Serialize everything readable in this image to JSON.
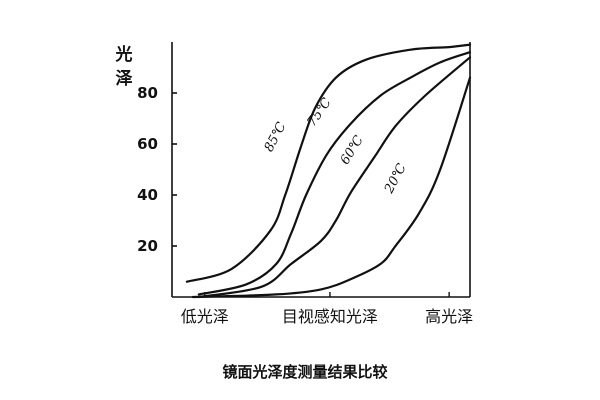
{
  "caption": "镜面光泽度测量结果比较",
  "chart_data": {
    "type": "line",
    "title": "镜面光泽度测量结果比较",
    "ylabel": "光泽",
    "xlabel": "",
    "ylim": [
      0,
      100
    ],
    "yticks": [
      20,
      40,
      60,
      80
    ],
    "x_categories": [
      "低光泽",
      "目视感知光泽",
      "高光泽"
    ],
    "xlim": [
      0,
      10
    ],
    "x_category_positions": [
      1.1,
      5.3,
      9.3
    ],
    "grid": false,
    "series": [
      {
        "name": "85℃",
        "x": [
          0.5,
          2.0,
          3.3,
          3.8,
          4.3,
          4.8,
          5.5,
          6.5,
          8.0,
          9.3,
          10.0
        ],
        "y": [
          6,
          11,
          26,
          40,
          58,
          74,
          86,
          93,
          97,
          98,
          99
        ]
      },
      {
        "name": "75℃",
        "x": [
          0.9,
          2.5,
          3.5,
          4.0,
          4.5,
          5.2,
          6.0,
          7.0,
          8.0,
          9.0,
          10.0
        ],
        "y": [
          1,
          5,
          13,
          25,
          40,
          56,
          68,
          79,
          86,
          92,
          96
        ]
      },
      {
        "name": "60℃",
        "x": [
          0.9,
          3.0,
          4.0,
          5.0,
          5.5,
          6.0,
          6.8,
          7.5,
          8.5,
          10.0
        ],
        "y": [
          0,
          4,
          13,
          22,
          30,
          41,
          55,
          67,
          79,
          94
        ]
      },
      {
        "name": "20℃",
        "x": [
          0.7,
          3.5,
          5.0,
          6.0,
          7.0,
          7.5,
          8.3,
          9.0,
          10.0
        ],
        "y": [
          0,
          1,
          3,
          7,
          13,
          20,
          33,
          50,
          86
        ]
      }
    ]
  }
}
